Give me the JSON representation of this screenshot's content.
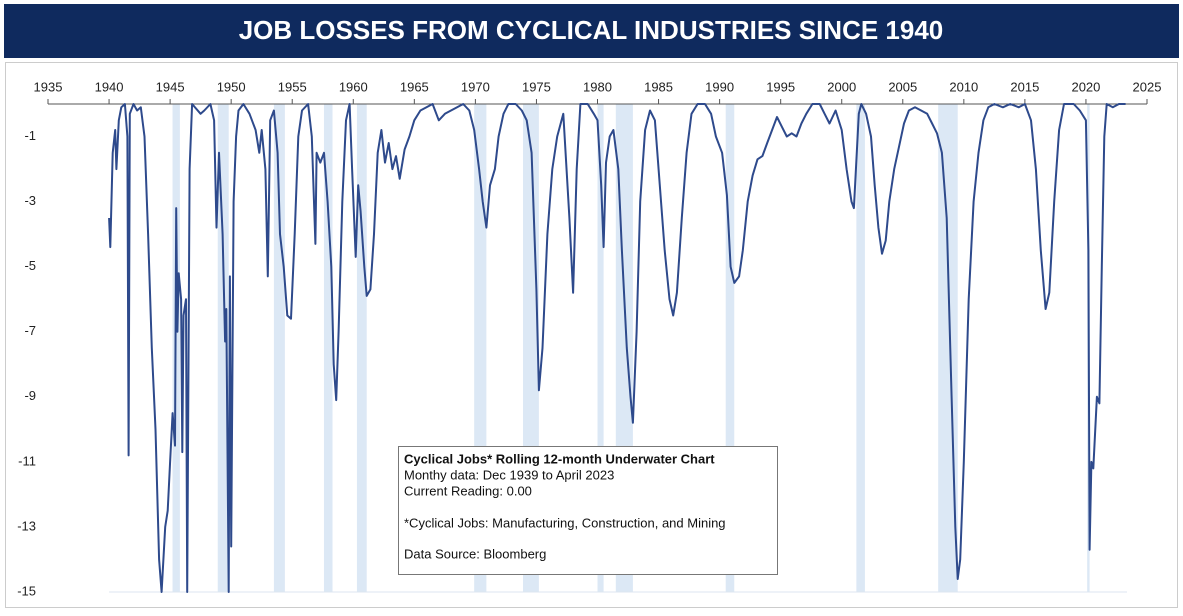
{
  "chart_data": {
    "type": "line",
    "title": "JOB LOSSES FROM CYCLICAL INDUSTRIES SINCE 1940",
    "annotation": [
      "Cyclical Jobs* Rolling 12-month Underwater Chart",
      "Monthy data: Dec 1939 to April 2023",
      "Current Reading: 0.00",
      "*Cyclical Jobs: Manufacturing, Construction, and Mining",
      "Data Source: Bloomberg"
    ],
    "xlim": [
      1935,
      2025
    ],
    "xticks": [
      1935,
      1940,
      1945,
      1950,
      1955,
      1960,
      1965,
      1970,
      1975,
      1980,
      1985,
      1990,
      1995,
      2000,
      2005,
      2010,
      2015,
      2020,
      2025
    ],
    "ylim": [
      -15,
      0
    ],
    "yticks": [
      -1,
      -3,
      -5,
      -7,
      -9,
      -11,
      -13,
      -15
    ],
    "shaded_periods": [
      [
        1945.2,
        1945.8
      ],
      [
        1948.9,
        1949.8
      ],
      [
        1953.5,
        1954.4
      ],
      [
        1957.6,
        1958.3
      ],
      [
        1960.3,
        1961.1
      ],
      [
        1969.9,
        1970.9
      ],
      [
        1973.9,
        1975.2
      ],
      [
        1980.0,
        1980.5
      ],
      [
        1981.5,
        1982.9
      ],
      [
        1990.5,
        1991.2
      ],
      [
        2001.2,
        2001.9
      ],
      [
        2007.9,
        2009.5
      ],
      [
        2020.1,
        2020.3
      ]
    ],
    "shade_color": "#dce8f5",
    "series": [
      {
        "color": "#2e4a8c",
        "x": [
          1940.0,
          1940.1,
          1940.3,
          1940.5,
          1940.6,
          1940.8,
          1941.0,
          1941.3,
          1941.5,
          1941.6,
          1941.7,
          1942.0,
          1942.3,
          1942.6,
          1942.9,
          1943.2,
          1943.5,
          1943.8,
          1944.1,
          1944.3,
          1944.6,
          1944.8,
          1945.0,
          1945.2,
          1945.4,
          1945.5,
          1945.6,
          1945.7,
          1945.9,
          1946.0,
          1946.1,
          1946.3,
          1946.4,
          1946.6,
          1946.8,
          1947.5,
          1947.8,
          1948.3,
          1948.6,
          1948.8,
          1949.0,
          1949.3,
          1949.5,
          1949.6,
          1949.8,
          1949.9,
          1950.0,
          1950.2,
          1950.4,
          1950.6,
          1951.0,
          1951.5,
          1952.0,
          1952.3,
          1952.5,
          1952.8,
          1953.0,
          1953.2,
          1953.5,
          1953.8,
          1954.0,
          1954.3,
          1954.6,
          1954.9,
          1955.2,
          1955.5,
          1955.8,
          1956.3,
          1956.6,
          1956.9,
          1957.0,
          1957.3,
          1957.6,
          1957.9,
          1958.2,
          1958.4,
          1958.6,
          1958.8,
          1959.1,
          1959.4,
          1959.7,
          1959.9,
          1960.2,
          1960.4,
          1960.6,
          1960.9,
          1961.1,
          1961.4,
          1961.7,
          1962.0,
          1962.3,
          1962.6,
          1962.9,
          1963.2,
          1963.5,
          1963.8,
          1964.2,
          1964.6,
          1965.0,
          1965.5,
          1966.0,
          1966.5,
          1967.0,
          1967.5,
          1968.0,
          1968.5,
          1969.0,
          1969.5,
          1969.9,
          1970.3,
          1970.6,
          1970.9,
          1971.2,
          1971.6,
          1971.9,
          1972.3,
          1972.7,
          1973.3,
          1973.8,
          1974.2,
          1974.6,
          1975.0,
          1975.2,
          1975.5,
          1975.9,
          1976.3,
          1976.7,
          1977.2,
          1977.7,
          1978.0,
          1978.3,
          1978.6,
          1979.2,
          1979.7,
          1980.0,
          1980.3,
          1980.5,
          1980.7,
          1981.0,
          1981.3,
          1981.7,
          1982.0,
          1982.4,
          1982.7,
          1982.9,
          1983.2,
          1983.5,
          1983.9,
          1984.3,
          1984.7,
          1985.1,
          1985.5,
          1985.9,
          1986.2,
          1986.5,
          1986.9,
          1987.3,
          1987.7,
          1988.2,
          1988.8,
          1989.3,
          1989.7,
          1990.2,
          1990.6,
          1990.9,
          1991.2,
          1991.6,
          1991.9,
          1992.3,
          1992.7,
          1993.1,
          1993.5,
          1993.9,
          1994.3,
          1994.7,
          1995.1,
          1995.5,
          1995.9,
          1996.3,
          1996.7,
          1997.1,
          1997.6,
          1998.2,
          1998.6,
          1999.0,
          1999.5,
          2000.0,
          2000.4,
          2000.8,
          2001.0,
          2001.4,
          2001.6,
          2002.0,
          2002.4,
          2002.7,
          2003.0,
          2003.3,
          2003.6,
          2003.9,
          2004.3,
          2004.7,
          2005.1,
          2005.5,
          2006.0,
          2006.5,
          2007.0,
          2007.4,
          2007.8,
          2008.2,
          2008.6,
          2009.0,
          2009.3,
          2009.5,
          2009.7,
          2010.0,
          2010.4,
          2010.8,
          2011.2,
          2011.6,
          2012.0,
          2012.5,
          2013.2,
          2013.8,
          2014.5,
          2015.0,
          2015.5,
          2015.9,
          2016.3,
          2016.7,
          2017.0,
          2017.4,
          2017.8,
          2018.2,
          2019.0,
          2019.5,
          2020.0,
          2020.2,
          2020.3,
          2020.45,
          2020.6,
          2020.9,
          2021.1,
          2021.3,
          2021.5,
          2021.7,
          2022.2,
          2022.7,
          2023.25
        ],
        "values": [
          -3.5,
          -4.4,
          -1.5,
          -0.8,
          -2,
          -0.5,
          -0.1,
          0,
          -1,
          -10.8,
          -0.3,
          0,
          -0.2,
          -0.1,
          -1,
          -4,
          -7.5,
          -10,
          -14,
          -15,
          -13,
          -12.5,
          -11,
          -9.5,
          -10.5,
          -3.2,
          -7,
          -5.2,
          -6,
          -10.7,
          -6.5,
          -6,
          -15,
          -2,
          0,
          -0.3,
          -0.2,
          0,
          -0.5,
          -3.8,
          -1.5,
          -4,
          -7.3,
          -6.3,
          -15,
          -5.3,
          -13.6,
          -3,
          -1,
          -0.2,
          0,
          -0.3,
          -0.8,
          -1.5,
          -0.8,
          -2,
          -5.3,
          -0.5,
          -0.2,
          -1.5,
          -4,
          -5,
          -6.5,
          -6.6,
          -4,
          -1,
          -0.2,
          0,
          -1,
          -4.3,
          -1.5,
          -1.8,
          -1.5,
          -3,
          -5,
          -8,
          -9.1,
          -7,
          -3,
          -0.5,
          0,
          -2,
          -4.7,
          -2.5,
          -3.3,
          -5,
          -5.9,
          -5.7,
          -4,
          -1.5,
          -0.8,
          -1.8,
          -1.2,
          -2,
          -1.6,
          -2.3,
          -1.4,
          -1.0,
          -0.5,
          -0.2,
          -0.1,
          0,
          -0.5,
          -0.3,
          -0.2,
          -0.1,
          0,
          -0.2,
          -0.8,
          -2,
          -3,
          -3.8,
          -2.5,
          -2,
          -1,
          -0.3,
          0,
          0,
          -0.2,
          -0.5,
          -1.5,
          -5.7,
          -8.8,
          -7.5,
          -4,
          -2,
          -1,
          -0.3,
          -3.5,
          -5.8,
          -2,
          0,
          0,
          -0.3,
          -0.5,
          -2.5,
          -4.4,
          -1.8,
          -1,
          -0.8,
          -2,
          -4.5,
          -7.5,
          -9,
          -9.8,
          -7,
          -3,
          -0.8,
          -0.2,
          -0.5,
          -2.5,
          -4.5,
          -6,
          -6.5,
          -5.8,
          -3.5,
          -1.5,
          -0.3,
          0,
          0,
          -0.3,
          -1,
          -1.5,
          -2.8,
          -5.0,
          -5.5,
          -5.3,
          -4.5,
          -3,
          -2.2,
          -1.7,
          -1.6,
          -1.2,
          -0.8,
          -0.4,
          -0.7,
          -1.0,
          -0.9,
          -1.0,
          -0.6,
          -0.3,
          0,
          0,
          -0.3,
          -0.6,
          -0.2,
          -0.8,
          -2,
          -3.0,
          -3.2,
          -0.3,
          0,
          -0.3,
          -1,
          -2.5,
          -3.8,
          -4.6,
          -4.2,
          -3,
          -2,
          -1.3,
          -0.6,
          -0.2,
          -0.1,
          -0.2,
          -0.3,
          -0.6,
          -0.9,
          -1.5,
          -3.5,
          -9,
          -13,
          -14.6,
          -14,
          -11,
          -6,
          -3,
          -1.5,
          -0.5,
          -0.1,
          0,
          -0.1,
          0,
          -0.1,
          0,
          -0.5,
          -2,
          -4.5,
          -6.3,
          -5.8,
          -3,
          -0.8,
          0,
          0,
          -0.2,
          -0.5,
          -4.5,
          -13.7,
          -11,
          -11.2,
          -9,
          -9.2,
          -5,
          -1,
          0,
          -0.1,
          0,
          0
        ]
      }
    ]
  }
}
